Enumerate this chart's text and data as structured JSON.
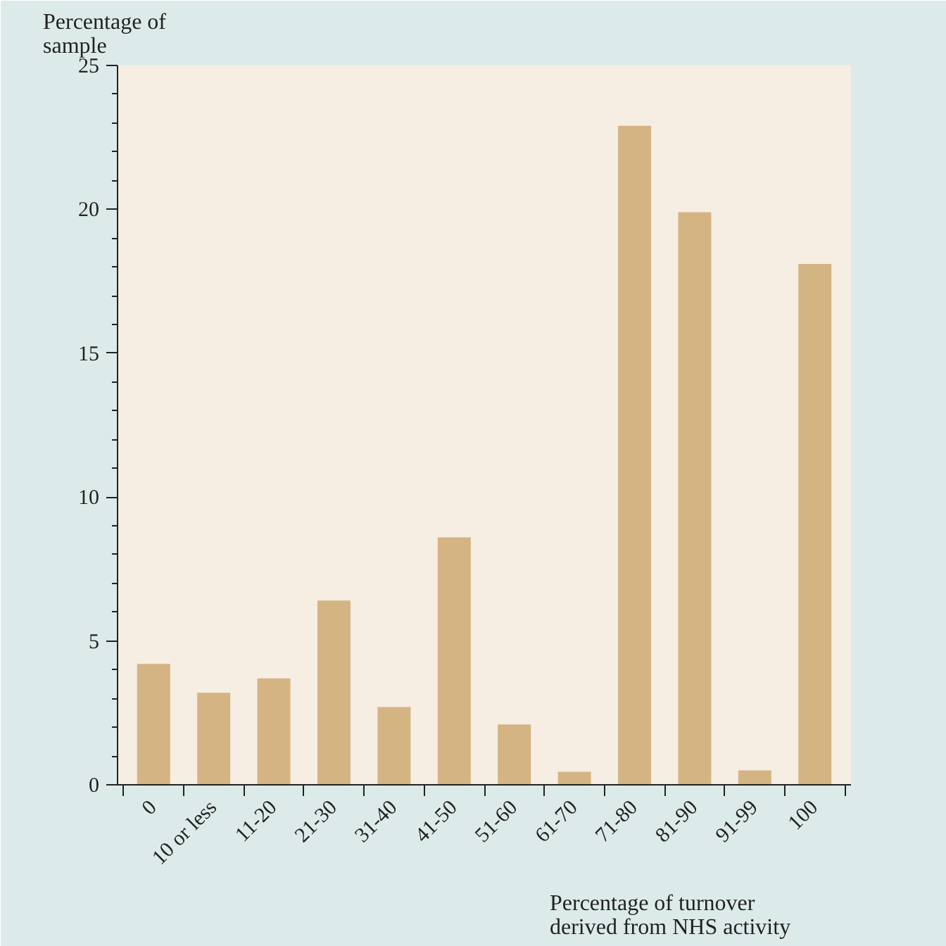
{
  "chart_data": {
    "type": "bar",
    "ylabel": "Percentage of\nsample",
    "xlabel": "Percentage of turnover\nderived from NHS activity",
    "categories": [
      "0",
      "10 or less",
      "11-20",
      "21-30",
      "31-40",
      "41-50",
      "51-60",
      "61-70",
      "71-80",
      "81-90",
      "91-99",
      "100"
    ],
    "values": [
      4.2,
      3.2,
      3.7,
      6.4,
      2.7,
      8.6,
      2.1,
      0.45,
      22.9,
      19.9,
      0.5,
      18.1
    ],
    "color": "#d4b483",
    "ylim": [
      0,
      25
    ],
    "yticks": [
      0,
      5,
      10,
      15,
      20,
      25
    ],
    "grid": false
  }
}
